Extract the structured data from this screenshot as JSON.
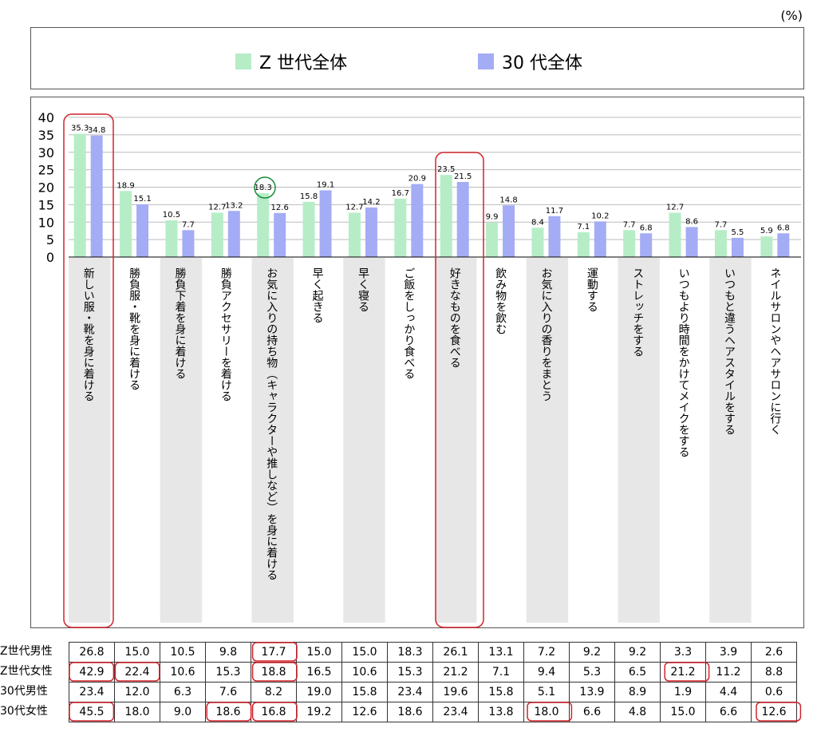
{
  "unit_label": "(%)",
  "legend": [
    {
      "name": "Z 世代全体",
      "color": "#b6edc7"
    },
    {
      "name": "30 代全体",
      "color": "#a4acf5"
    }
  ],
  "chart_data": {
    "type": "bar",
    "categories": [
      "新しい服・靴を身に着ける",
      "勝負服・靴を身に着ける",
      "勝負下着を身に着ける",
      "勝負アクセサリーを着ける",
      "お気に入りの持ち物（キャラクターや推しなど）を身に着ける",
      "早く起きる",
      "早く寝る",
      "ご飯をしっかり食べる",
      "好きなものを食べる",
      "飲み物を飲む",
      "お気に入りの香りをまとう",
      "運動する",
      "ストレッチをする",
      "いつもより時間をかけてメイクをする",
      "いつもと違うヘアスタイルをする",
      "ネイルサロンやヘアサロンに行く"
    ],
    "series": [
      {
        "name": "Z 世代全体",
        "values": [
          35.3,
          18.9,
          10.5,
          12.7,
          18.3,
          15.8,
          12.7,
          16.7,
          23.5,
          9.9,
          8.4,
          7.1,
          7.7,
          12.7,
          7.7,
          5.9
        ]
      },
      {
        "name": "30 代全体",
        "values": [
          34.8,
          15.1,
          7.7,
          13.2,
          12.6,
          19.1,
          14.2,
          20.9,
          21.5,
          14.8,
          11.7,
          10.2,
          6.8,
          8.6,
          5.5,
          6.8
        ]
      }
    ],
    "yticks": [
      "40",
      "35",
      "30",
      "25",
      "20",
      "15",
      "10",
      "5",
      "0"
    ],
    "ylim": [
      0,
      40
    ],
    "grid": true
  },
  "table": {
    "row_labels": [
      "Z世代男性",
      "Z世代女性",
      "30代男性",
      "30代女性"
    ],
    "rows": [
      [
        "26.8",
        "15.0",
        "10.5",
        "9.8",
        "17.7",
        "15.0",
        "15.0",
        "18.3",
        "26.1",
        "13.1",
        "7.2",
        "9.2",
        "9.2",
        "3.3",
        "3.9",
        "2.6"
      ],
      [
        "42.9",
        "22.4",
        "10.6",
        "15.3",
        "18.8",
        "16.5",
        "10.6",
        "15.3",
        "21.2",
        "7.1",
        "9.4",
        "5.3",
        "6.5",
        "21.2",
        "11.2",
        "8.8"
      ],
      [
        "23.4",
        "12.0",
        "6.3",
        "7.6",
        "8.2",
        "19.0",
        "15.8",
        "23.4",
        "19.6",
        "15.8",
        "5.1",
        "13.9",
        "8.9",
        "1.9",
        "4.4",
        "0.6"
      ],
      [
        "45.5",
        "18.0",
        "9.0",
        "18.6",
        "16.8",
        "19.2",
        "12.6",
        "18.6",
        "23.4",
        "13.8",
        "18.0",
        "6.6",
        "4.8",
        "15.0",
        "6.6",
        "12.6"
      ]
    ]
  }
}
